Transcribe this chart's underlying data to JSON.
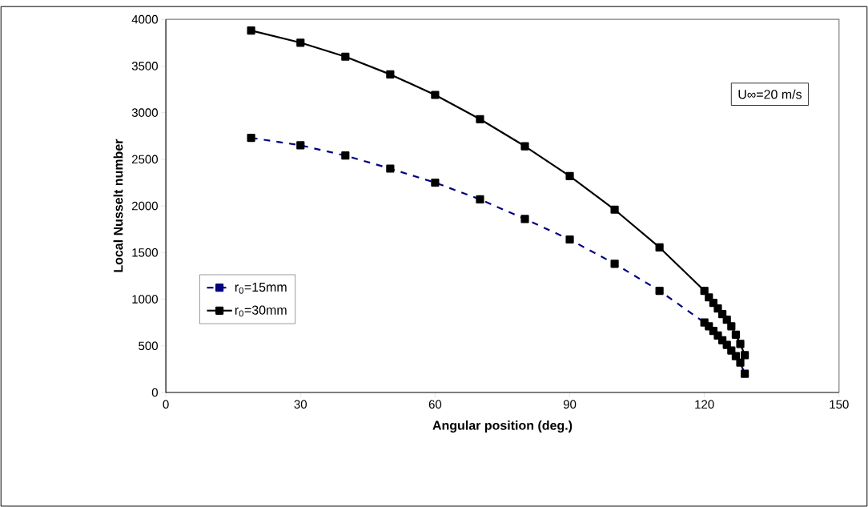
{
  "chart_data": {
    "type": "line",
    "xlabel": "Angular position (deg.)",
    "ylabel": "Local Nusselt number",
    "annotations": [
      "U∞=20 m/s"
    ],
    "xlim": [
      0,
      150
    ],
    "xticks": [
      0,
      30,
      60,
      90,
      120,
      150
    ],
    "ylim": [
      0,
      4000
    ],
    "yticks": [
      0,
      500,
      1000,
      1500,
      2000,
      2500,
      3000,
      3500,
      4000
    ],
    "grid": false,
    "legend": "left",
    "marker": "square",
    "series": [
      {
        "name": "r$_{0}$=15mm",
        "color": "#000080",
        "line_style": "dashed",
        "x": [
          19,
          30,
          40,
          50,
          60,
          70,
          80,
          90,
          100,
          110,
          120,
          121,
          122,
          123,
          124,
          125,
          126,
          127,
          128,
          129
        ],
        "values": [
          2730,
          2650,
          2540,
          2400,
          2250,
          2070,
          1860,
          1640,
          1380,
          1090,
          750,
          710,
          660,
          610,
          560,
          510,
          450,
          390,
          320,
          200
        ]
      },
      {
        "name": "r$_{0}$=30mm",
        "color": "#000000",
        "line_style": "solid",
        "x": [
          19,
          30,
          40,
          50,
          60,
          70,
          80,
          90,
          100,
          110,
          120,
          121,
          122,
          123,
          124,
          125,
          126,
          127,
          128,
          129
        ],
        "values": [
          3880,
          3750,
          3600,
          3410,
          3190,
          2930,
          2640,
          2320,
          1960,
          1555,
          1090,
          1020,
          960,
          900,
          840,
          780,
          710,
          620,
          520,
          400
        ]
      }
    ]
  }
}
